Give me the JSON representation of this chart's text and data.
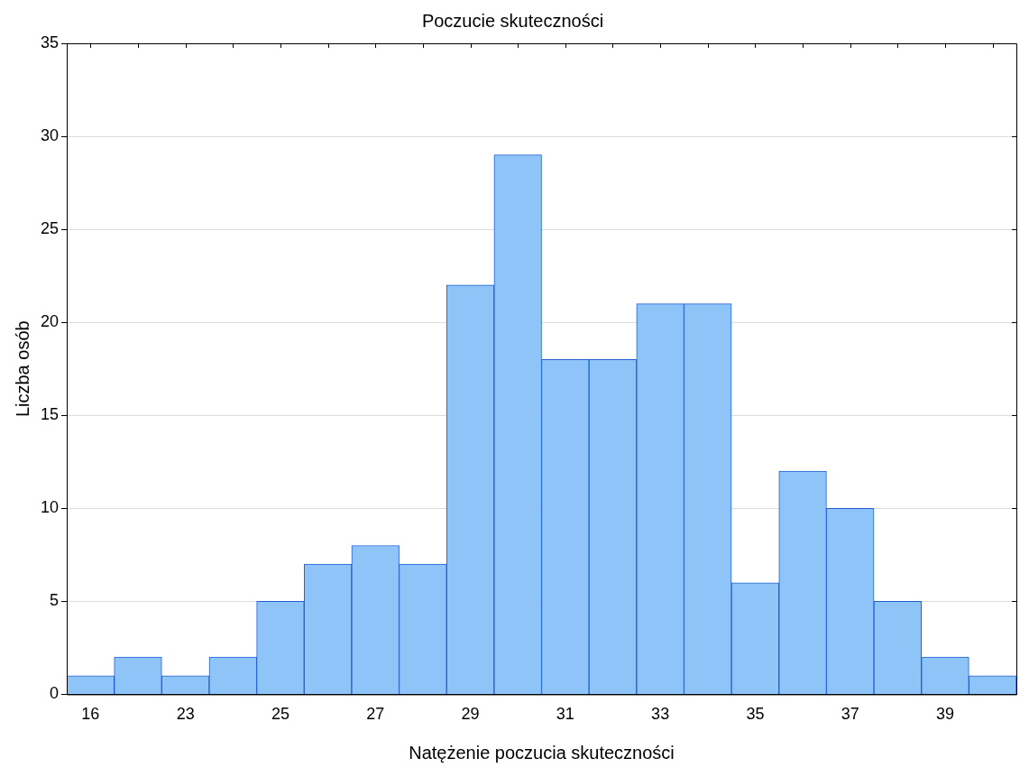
{
  "chart_data": {
    "type": "bar",
    "title": "Poczucie skuteczności",
    "xlabel": "Natężenie poczucia skuteczności",
    "ylabel": "Liczba osób",
    "categories": [
      "16",
      null,
      "23",
      null,
      "25",
      null,
      "27",
      null,
      "29",
      null,
      "31",
      null,
      "33",
      null,
      "35",
      null,
      "37",
      null,
      "39",
      null
    ],
    "values": [
      1,
      2,
      1,
      2,
      5,
      7,
      8,
      7,
      22,
      29,
      18,
      18,
      21,
      21,
      6,
      12,
      10,
      5,
      2,
      1
    ],
    "color": "#8fc4f8",
    "ylim": [
      0,
      35
    ],
    "yticks": [
      0,
      5,
      10,
      15,
      20,
      25,
      30,
      35
    ],
    "grid": "y",
    "legend": false
  }
}
